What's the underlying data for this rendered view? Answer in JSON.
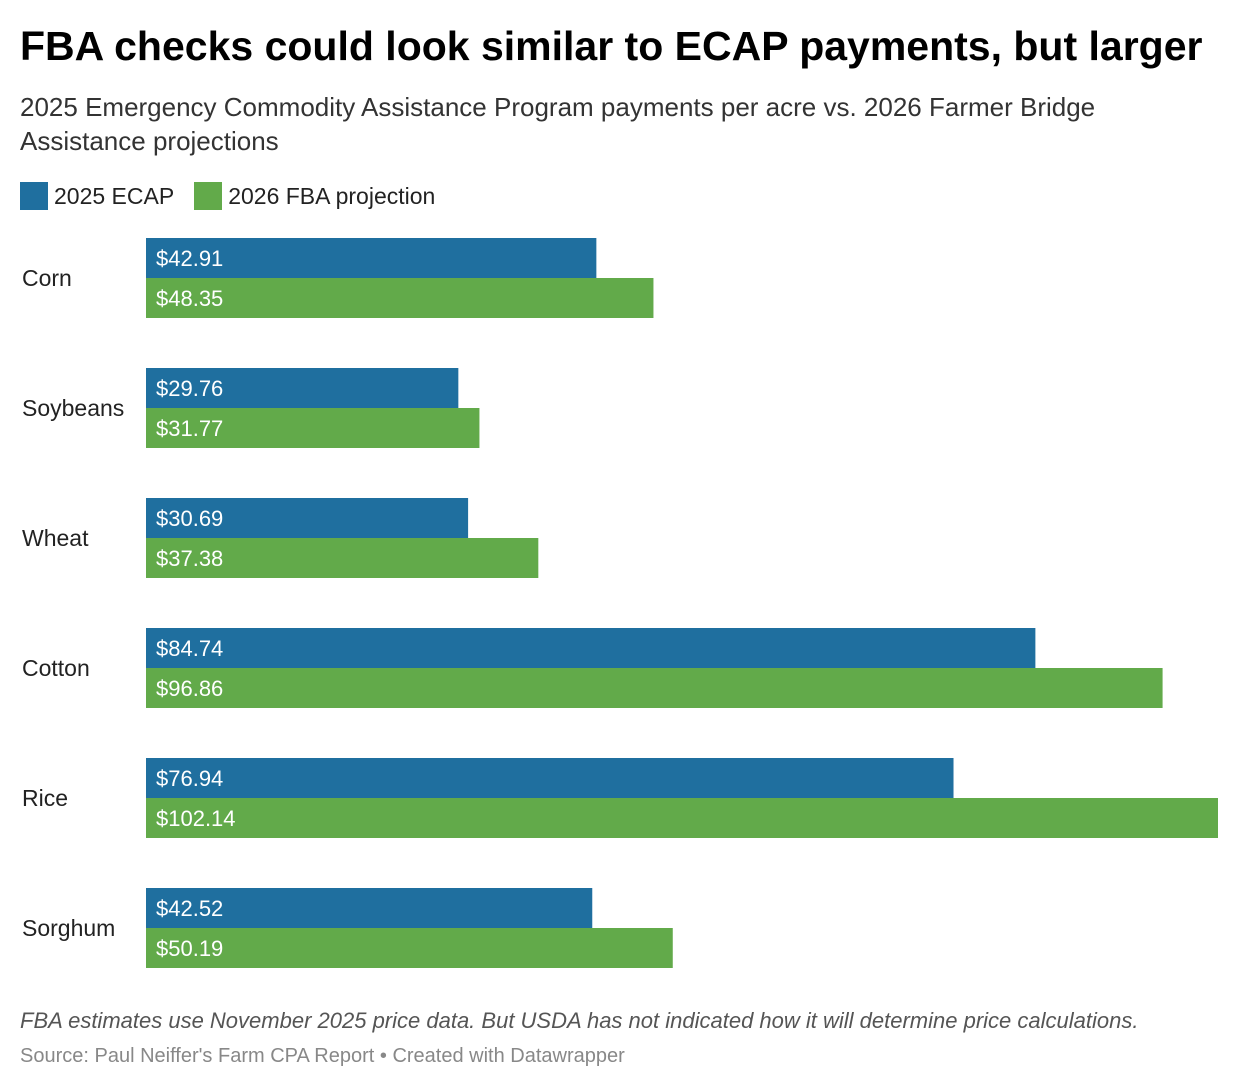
{
  "title": "FBA checks could look similar to ECAP payments, but larger",
  "subtitle": "2025 Emergency Commodity Assistance Program payments per acre vs. 2026 Farmer Bridge Assistance projections",
  "notes": "FBA estimates use November 2025 price data. But USDA has not indicated how it will determine price calculations.",
  "source": "Source: Paul Neiffer's Farm CPA Report • Created with Datawrapper",
  "colors": {
    "ecap": "#1f6f9f",
    "fba": "#62aa4a"
  },
  "chart_data": {
    "type": "bar",
    "orientation": "horizontal",
    "categories": [
      "Corn",
      "Soybeans",
      "Wheat",
      "Cotton",
      "Rice",
      "Sorghum"
    ],
    "series": [
      {
        "name": "2025 ECAP",
        "color": "#1f6f9f",
        "values": [
          42.91,
          29.76,
          30.69,
          84.74,
          76.94,
          42.52
        ],
        "labels": [
          "$42.91",
          "$29.76",
          "$30.69",
          "$84.74",
          "$76.94",
          "$42.52"
        ]
      },
      {
        "name": "2026 FBA projection",
        "color": "#62aa4a",
        "values": [
          48.35,
          31.77,
          37.38,
          96.86,
          102.14,
          50.19
        ],
        "labels": [
          "$48.35",
          "$31.77",
          "$37.38",
          "$96.86",
          "$102.14",
          "$50.19"
        ]
      }
    ],
    "xlim": [
      0,
      102.14
    ],
    "grid": false,
    "legend_position": "top-left"
  }
}
